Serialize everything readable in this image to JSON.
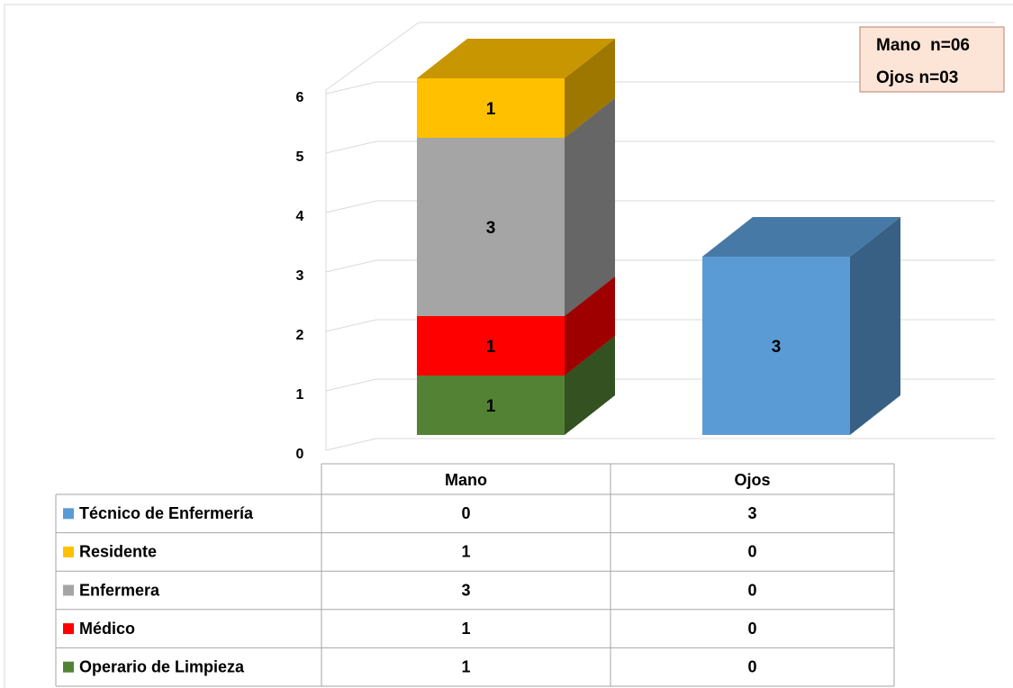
{
  "chart_data": {
    "type": "bar3d",
    "categories": [
      "Mano",
      "Ojos"
    ],
    "series": [
      {
        "name": "Técnico de Enfermería",
        "color": "#5b9bd5",
        "values": [
          0,
          3
        ]
      },
      {
        "name": "Residente",
        "color": "#ffc000",
        "values": [
          1,
          0
        ]
      },
      {
        "name": "Enfermera",
        "color": "#a5a5a5",
        "values": [
          3,
          0
        ]
      },
      {
        "name": "Médico",
        "color": "#ff0000",
        "values": [
          1,
          0
        ]
      },
      {
        "name": "Operario de Limpieza",
        "color": "#548235",
        "values": [
          1,
          0
        ]
      }
    ],
    "ylim": [
      0,
      6
    ],
    "yticks": [
      0,
      1,
      2,
      3,
      4,
      5,
      6
    ],
    "grid": true,
    "annotations": [
      {
        "text": "Mano  n=06",
        "color": "#1f497d"
      },
      {
        "text": "Ojos n=03",
        "color": "#c00000"
      }
    ]
  }
}
